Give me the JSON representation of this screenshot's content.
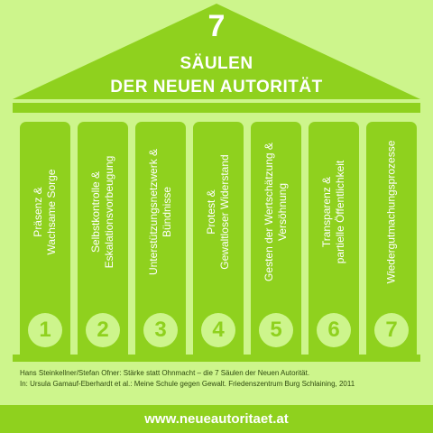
{
  "title": {
    "number": "7",
    "line1": "SÄULEN",
    "line2": "DER NEUEN AUTORITÄT"
  },
  "pillars": [
    {
      "number": "1",
      "line1": "Präsenz &",
      "line2": "Wachsame Sorge"
    },
    {
      "number": "2",
      "line1": "Selbstkontrolle &",
      "line2": "Eskalationsvorbeugung"
    },
    {
      "number": "3",
      "line1": "Unterstützungsnetzwerk &",
      "line2": "Bündnisse"
    },
    {
      "number": "4",
      "line1": "Protest &",
      "line2": "Gewaltloser Widerstand"
    },
    {
      "number": "5",
      "line1": "Gesten der Wertschätzung &",
      "line2": "Versöhnung"
    },
    {
      "number": "6",
      "line1": "Transparenz &",
      "line2": "partielle Öffentlichkeit"
    },
    {
      "number": "7",
      "line1": "Wiedergutmachungsprozesse",
      "line2": ""
    }
  ],
  "credits": {
    "line1": "Hans Steinkellner/Stefan Ofner: Stärke statt Ohnmacht – die 7 Säulen der Neuen Autorität.",
    "line2": "In: Ursula Gamauf-Eberhardt et al.: Meine Schule gegen Gewalt. Friedenszentrum Burg Schlaining, 2011"
  },
  "footer": {
    "url": "www.neueautoritaet.at"
  },
  "colors": {
    "background": "#cdf58c",
    "accent": "#8fd11e",
    "text_on_accent": "#ffffff"
  }
}
